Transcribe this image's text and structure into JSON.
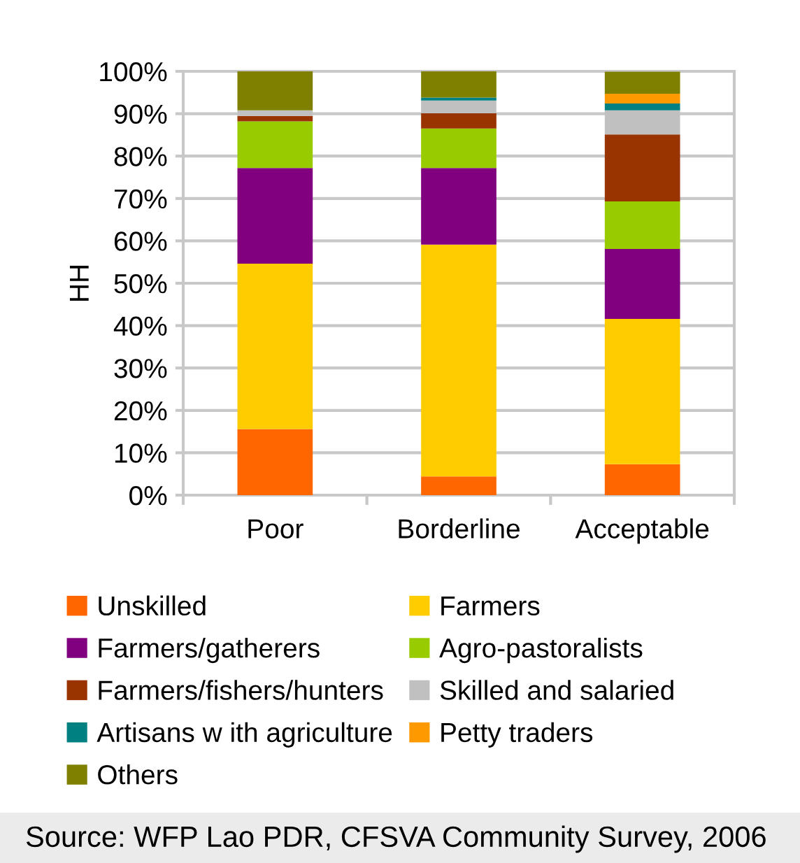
{
  "chart_data": {
    "type": "bar",
    "stacked": true,
    "ylabel": "HH",
    "categories": [
      "Poor",
      "Borderline",
      "Acceptable"
    ],
    "series": [
      {
        "name": "Unskilled",
        "color": "#ff6600",
        "values": [
          15.6,
          4.4,
          7.3
        ]
      },
      {
        "name": "Farmers",
        "color": "#ffcc00",
        "values": [
          39.0,
          54.7,
          34.3
        ]
      },
      {
        "name": "Farmers/gatherers",
        "color": "#800080",
        "values": [
          22.6,
          18.1,
          16.5
        ]
      },
      {
        "name": "Agro-pastoralists",
        "color": "#99cc00",
        "values": [
          11.0,
          9.3,
          11.2
        ]
      },
      {
        "name": "Farmers/fishers/hunters",
        "color": "#993300",
        "values": [
          1.3,
          3.6,
          15.8
        ]
      },
      {
        "name": "Skilled and salaried",
        "color": "#c0c0c0",
        "values": [
          1.3,
          3.0,
          5.7
        ]
      },
      {
        "name": "Artisans w ith agriculture",
        "color": "#008080",
        "values": [
          null,
          0.7,
          1.6
        ]
      },
      {
        "name": "Petty traders",
        "color": "#ff9900",
        "values": [
          null,
          null,
          2.3
        ]
      },
      {
        "name": "Others",
        "color": "#808000",
        "values": [
          9.2,
          6.2,
          5.2
        ]
      }
    ],
    "ylim": [
      0,
      100
    ],
    "yticks": [
      {
        "value": 0,
        "label": "0%"
      },
      {
        "value": 10,
        "label": "10%"
      },
      {
        "value": 20,
        "label": "20%"
      },
      {
        "value": 30,
        "label": "30%"
      },
      {
        "value": 40,
        "label": "40%"
      },
      {
        "value": 50,
        "label": "50%"
      },
      {
        "value": 60,
        "label": "60%"
      },
      {
        "value": 70,
        "label": "70%"
      },
      {
        "value": 80,
        "label": "80%"
      },
      {
        "value": 90,
        "label": "90%"
      },
      {
        "value": 100,
        "label": "100%"
      }
    ],
    "grid": "y",
    "legend": "bottom",
    "annotations": [
      "Source: WFP Lao PDR, CFSVA Community Survey, 2006"
    ]
  }
}
